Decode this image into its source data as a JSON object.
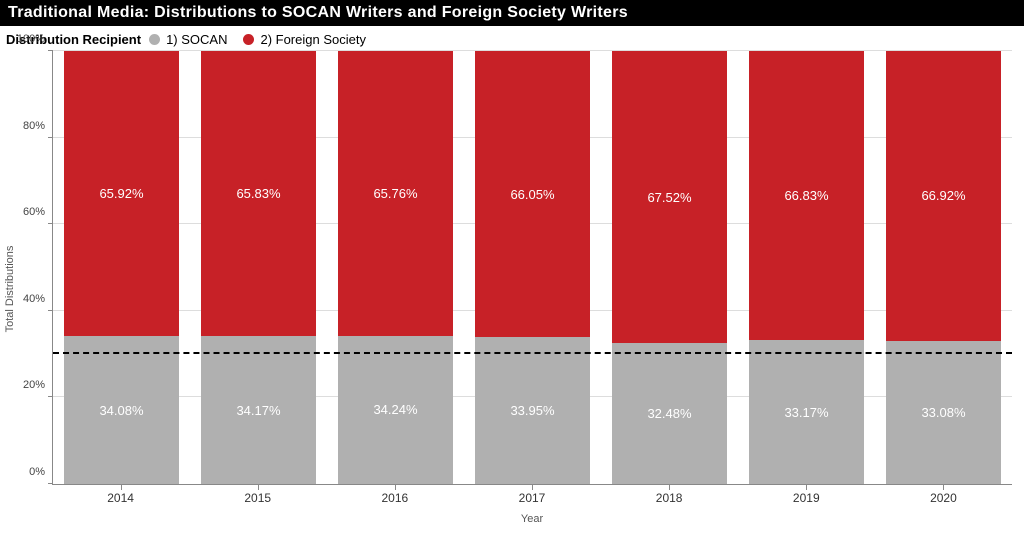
{
  "title": "Traditional Media: Distributions to SOCAN Writers and Foreign Society Writers",
  "legend": {
    "title": "Distribution Recipient",
    "items": [
      {
        "label": "1) SOCAN",
        "color": "#b0b0b0"
      },
      {
        "label": "2) Foreign Society",
        "color": "#c72127"
      }
    ]
  },
  "axes": {
    "y": {
      "label": "Total Distributions",
      "min": 0,
      "max": 100,
      "tick_step": 20,
      "ticks": [
        "0%",
        "20%",
        "40%",
        "60%",
        "80%",
        "100%"
      ],
      "label_fontsize": 11,
      "tick_fontsize": 11
    },
    "x": {
      "label": "Year",
      "label_fontsize": 11,
      "tick_fontsize": 12
    }
  },
  "reference_line": {
    "value_pct": 30,
    "style": "dashed",
    "color": "#000000"
  },
  "colors": {
    "socan": "#b0b0b0",
    "foreign": "#c72127",
    "background": "#ffffff",
    "gridline": "#dddddd",
    "axis": "#888888",
    "value_text": "#ffffff",
    "title_bg": "#000000",
    "title_fg": "#ffffff"
  },
  "chart": {
    "type": "stacked-bar-100pct",
    "bar_width_ratio": 0.84,
    "categories": [
      "2014",
      "2015",
      "2016",
      "2017",
      "2018",
      "2019",
      "2020"
    ],
    "series": [
      {
        "key": "foreign",
        "name": "2) Foreign Society",
        "color": "#c72127",
        "values": [
          65.92,
          65.83,
          65.76,
          66.05,
          67.52,
          66.83,
          66.92
        ],
        "labels": [
          "65.92%",
          "65.83%",
          "65.76%",
          "66.05%",
          "67.52%",
          "66.83%",
          "66.92%"
        ]
      },
      {
        "key": "socan",
        "name": "1) SOCAN",
        "color": "#b0b0b0",
        "values": [
          34.08,
          34.17,
          34.24,
          33.95,
          32.48,
          33.17,
          33.08
        ],
        "labels": [
          "34.08%",
          "34.17%",
          "34.24%",
          "33.95%",
          "32.48%",
          "33.17%",
          "33.08%"
        ]
      }
    ]
  }
}
